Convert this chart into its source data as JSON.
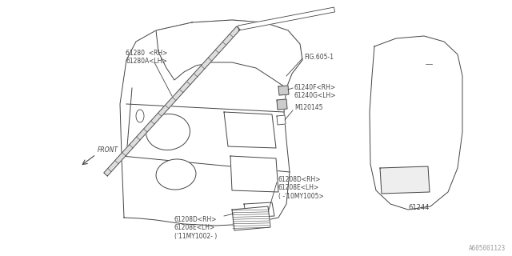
{
  "bg_color": "#ffffff",
  "line_color": "#444444",
  "text_color": "#444444",
  "fig_width": 6.4,
  "fig_height": 3.2,
  "dpi": 100,
  "watermark": "A605001123",
  "labels": {
    "part_61280": "61280  <RH>\n61280A<LH>",
    "part_fig605": "FIG.605-1",
    "part_61240f": "61240F<RH>\n61240G<LH>",
    "part_m120145": "M120145",
    "part_61208d_top": "61208D<RH>\n61208E<LH>\n( -'10MY1005>",
    "part_61208d_bot": "61208D<RH>\n61208E<LH>\n('11MY1002- )",
    "part_61244": "61244",
    "front_label": "FRONT"
  }
}
